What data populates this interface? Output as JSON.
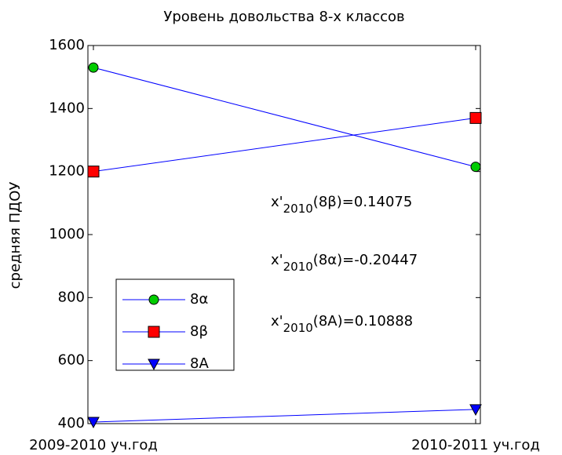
{
  "chart_data": {
    "type": "line",
    "title": "Уровень довольства 8-х классов",
    "y_label": "средняя ПДОУ",
    "categories": [
      "2009-2010 уч.год",
      "2010-2011 уч.год"
    ],
    "series": [
      {
        "name": "8α",
        "color": "#0000ff",
        "marker": "circle",
        "marker_color": "#00cc00",
        "values": [
          1530,
          1215
        ]
      },
      {
        "name": "8β",
        "color": "#0000ff",
        "marker": "square",
        "marker_color": "#ff0000",
        "values": [
          1200,
          1370
        ]
      },
      {
        "name": "8A",
        "color": "#0000ff",
        "marker": "triangle-down",
        "marker_color": "#0000ff",
        "values": [
          405,
          445
        ]
      }
    ],
    "ylim": [
      400,
      1600
    ],
    "yticks": [
      400,
      600,
      800,
      1000,
      1200,
      1400,
      1600
    ],
    "grid": false,
    "legend": "lower left",
    "annotations": [
      {
        "base": "x'",
        "sub": "2010",
        "rest": "(8β)=0.14075"
      },
      {
        "base": "x'",
        "sub": "2010",
        "rest": "(8α)=-0.20447"
      },
      {
        "base": "x'",
        "sub": "2010",
        "rest": "(8A)=0.10888"
      }
    ]
  }
}
